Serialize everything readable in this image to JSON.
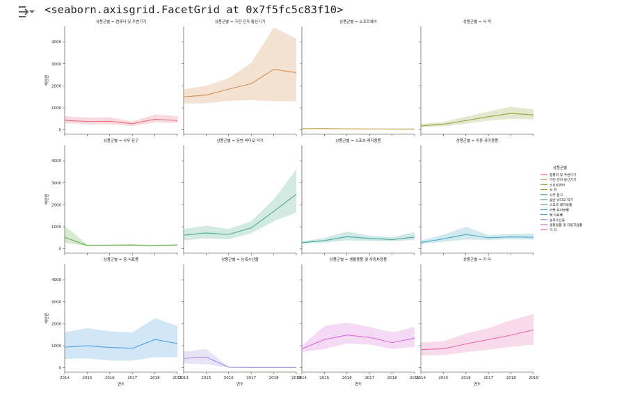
{
  "output": {
    "repr_text": "<seaborn.axisgrid.FacetGrid at 0x7f5fc5c83f10>"
  },
  "chart_data": {
    "type": "line",
    "kind": "facet-grid",
    "facet_prefix": "상품군별 = ",
    "x": [
      2014,
      2015,
      2016,
      2017,
      2018,
      2019
    ],
    "xlabel": "연도",
    "ylabel": "백만원",
    "ylim": [
      -200,
      4700
    ],
    "yticks": [
      0,
      1000,
      2000,
      3000,
      4000
    ],
    "legend": {
      "title": "상품군별",
      "position": "right"
    },
    "series": [
      {
        "name": "컴퓨터 및 주변기기",
        "color": "#e8707e",
        "values": [
          430,
          380,
          390,
          280,
          480,
          420
        ],
        "lower": [
          300,
          260,
          250,
          180,
          330,
          310
        ],
        "upper": [
          620,
          560,
          570,
          380,
          700,
          620
        ]
      },
      {
        "name": "가전·전자·통신기기",
        "color": "#d58d4e",
        "values": [
          1500,
          1580,
          1850,
          2100,
          2750,
          2600
        ],
        "lower": [
          1200,
          1200,
          1320,
          1350,
          1300,
          1300
        ],
        "upper": [
          1850,
          2000,
          2350,
          3050,
          4650,
          4150
        ]
      },
      {
        "name": "소프트웨어",
        "color": "#b49a35",
        "values": [
          50,
          60,
          45,
          40,
          35,
          30
        ],
        "lower": [
          35,
          40,
          30,
          25,
          20,
          15
        ],
        "upper": [
          70,
          80,
          60,
          55,
          50,
          45
        ]
      },
      {
        "name": "서 적",
        "color": "#94a33d",
        "values": [
          180,
          250,
          420,
          600,
          750,
          680
        ],
        "lower": [
          120,
          160,
          280,
          420,
          500,
          480
        ],
        "upper": [
          260,
          360,
          600,
          830,
          1050,
          930
        ]
      },
      {
        "name": "사무·문구",
        "color": "#5aac45",
        "values": [
          520,
          150,
          160,
          170,
          140,
          170
        ],
        "lower": [
          280,
          120,
          130,
          130,
          110,
          130
        ],
        "upper": [
          1050,
          190,
          200,
          210,
          180,
          220
        ]
      },
      {
        "name": "음반·비디오·악기",
        "color": "#4aab86",
        "values": [
          620,
          720,
          650,
          950,
          1700,
          2480
        ],
        "lower": [
          380,
          470,
          430,
          700,
          1250,
          1650
        ],
        "upper": [
          900,
          1050,
          900,
          1250,
          2250,
          3600
        ]
      },
      {
        "name": "스포츠·레저용품",
        "color": "#44a8a0",
        "values": [
          280,
          370,
          550,
          470,
          420,
          530
        ],
        "lower": [
          230,
          280,
          380,
          360,
          340,
          400
        ],
        "upper": [
          330,
          500,
          780,
          600,
          520,
          760
        ]
      },
      {
        "name": "아동·유아용품",
        "color": "#4aa8c1",
        "values": [
          280,
          450,
          650,
          500,
          540,
          520
        ],
        "lower": [
          210,
          320,
          420,
          400,
          430,
          410
        ],
        "upper": [
          380,
          640,
          1000,
          620,
          680,
          700
        ]
      },
      {
        "name": "음·식료품",
        "color": "#4ba0dd",
        "values": [
          930,
          1000,
          920,
          880,
          1280,
          1100
        ],
        "lower": [
          400,
          420,
          320,
          320,
          480,
          470
        ],
        "upper": [
          1600,
          1800,
          1650,
          1600,
          2250,
          1900
        ]
      },
      {
        "name": "농축수산물",
        "color": "#a38fe0",
        "values": [
          420,
          480,
          20,
          10,
          10,
          10
        ],
        "lower": [
          200,
          150,
          5,
          2,
          2,
          2
        ],
        "upper": [
          730,
          850,
          40,
          20,
          20,
          20
        ]
      },
      {
        "name": "생활용품 및 자동차용품",
        "color": "#d96ad9",
        "values": [
          860,
          1280,
          1480,
          1380,
          1140,
          1340
        ],
        "lower": [
          700,
          850,
          1100,
          1050,
          850,
          950
        ],
        "upper": [
          1000,
          1900,
          2050,
          1850,
          1600,
          1850
        ]
      },
      {
        "name": "기 타",
        "color": "#e66aac",
        "values": [
          820,
          860,
          1080,
          1280,
          1480,
          1720
        ],
        "lower": [
          550,
          580,
          700,
          820,
          950,
          1050
        ],
        "upper": [
          1150,
          1200,
          1550,
          1800,
          2150,
          2450
        ]
      }
    ]
  }
}
